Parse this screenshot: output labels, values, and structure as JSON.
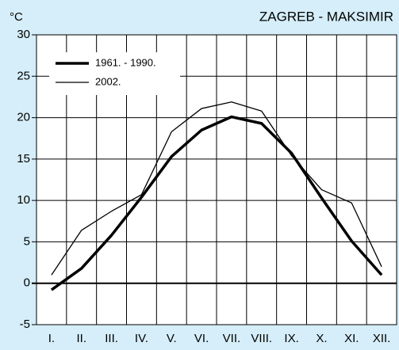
{
  "chart_data": {
    "type": "line",
    "title": "ZAGREB - MAKSIMIR",
    "y_label": "°C",
    "categories": [
      "I.",
      "II.",
      "III.",
      "IV.",
      "V.",
      "VI.",
      "VII.",
      "VIII.",
      "IX.",
      "X.",
      "XI.",
      "XII."
    ],
    "series": [
      {
        "name": "1961. - 1990.",
        "color": "#000000",
        "width": 3.5,
        "values": [
          -0.8,
          1.8,
          5.8,
          10.4,
          15.3,
          18.5,
          20.1,
          19.3,
          15.7,
          10.3,
          5.1,
          1.0
        ]
      },
      {
        "name": "2002.",
        "color": "#000000",
        "width": 1.3,
        "values": [
          1.0,
          6.4,
          8.7,
          10.7,
          18.3,
          21.1,
          21.9,
          20.8,
          15.4,
          11.3,
          9.7,
          2.0
        ]
      }
    ],
    "ylim": [
      -5,
      30
    ],
    "yticks": [
      -5,
      0,
      5,
      10,
      15,
      20,
      25,
      30
    ],
    "grid": true,
    "legend": "upper left"
  }
}
